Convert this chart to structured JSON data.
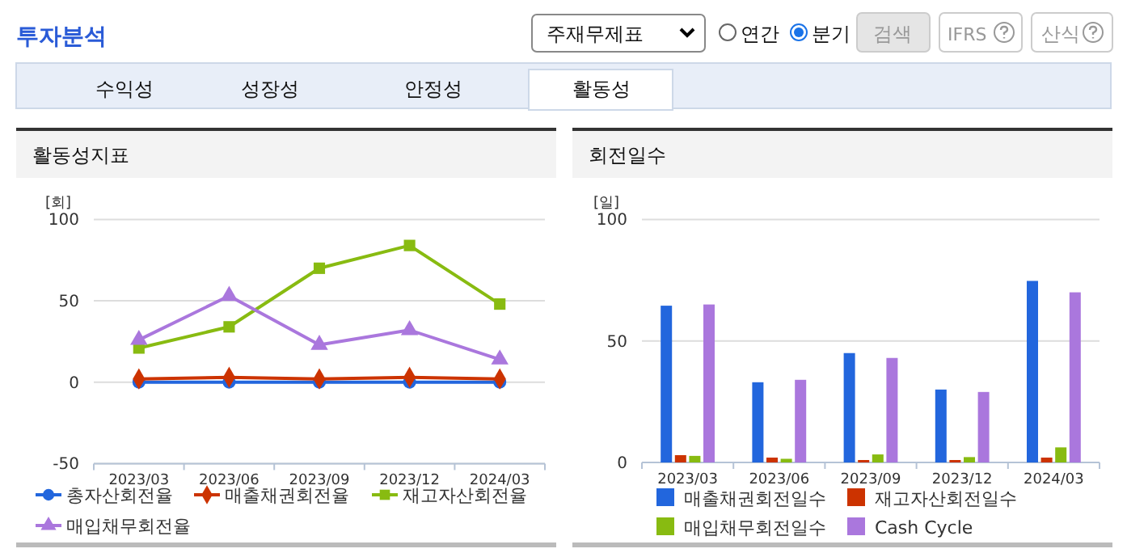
{
  "chart_data": [
    {
      "type": "other",
      "title": "투자분석",
      "annotations": [
        "주재무제표",
        "연간",
        "분기",
        "검색",
        "IFRS",
        "산식",
        "수익성",
        "성장성",
        "안정성",
        "활동성"
      ]
    },
    {
      "type": "line",
      "title": "활동성지표",
      "ylabel": "[회]",
      "categories": [
        "2023/03",
        "2023/06",
        "2023/09",
        "2023/12",
        "2024/03"
      ],
      "ylim": [
        -50,
        100
      ],
      "yticks": [
        -50,
        0,
        50,
        100
      ],
      "grid": "y",
      "legend": "bottom",
      "line_style": "solid",
      "series": [
        {
          "name": "총자산회전율",
          "color": "#2266dd",
          "marker": "circle",
          "values": [
            0,
            0,
            0,
            0,
            0
          ]
        },
        {
          "name": "매출채권회전율",
          "color": "#cc3300",
          "marker": "diamond",
          "values": [
            2,
            3,
            2,
            3,
            2
          ]
        },
        {
          "name": "재고자산회전율",
          "color": "#88bb11",
          "marker": "square",
          "values": [
            21,
            34,
            70,
            84,
            48
          ]
        },
        {
          "name": "매입채무회전율",
          "color": "#aa77dd",
          "marker": "triangle",
          "values": [
            26,
            53,
            23,
            32,
            14
          ]
        }
      ]
    },
    {
      "type": "bar",
      "title": "회전일수",
      "ylabel": "[일]",
      "categories": [
        "2023/03",
        "2023/06",
        "2023/09",
        "2023/12",
        "2024/03"
      ],
      "ylim": [
        0,
        100
      ],
      "yticks": [
        0,
        50,
        100
      ],
      "grid": "y",
      "legend": "bottom",
      "series": [
        {
          "name": "매출채권회전일수",
          "color": "#2266dd",
          "values": [
            64.5,
            33,
            45,
            30,
            74.7
          ]
        },
        {
          "name": "재고자산회전일수",
          "color": "#cc3300",
          "values": [
            3,
            2,
            1,
            1,
            2
          ]
        },
        {
          "name": "매입채무회전일수",
          "color": "#88bb11",
          "values": [
            2.7,
            1.5,
            3.3,
            2.2,
            6.2
          ]
        },
        {
          "name": "Cash Cycle",
          "color": "#aa77dd",
          "values": [
            65,
            34,
            43,
            29,
            70
          ]
        }
      ]
    }
  ]
}
